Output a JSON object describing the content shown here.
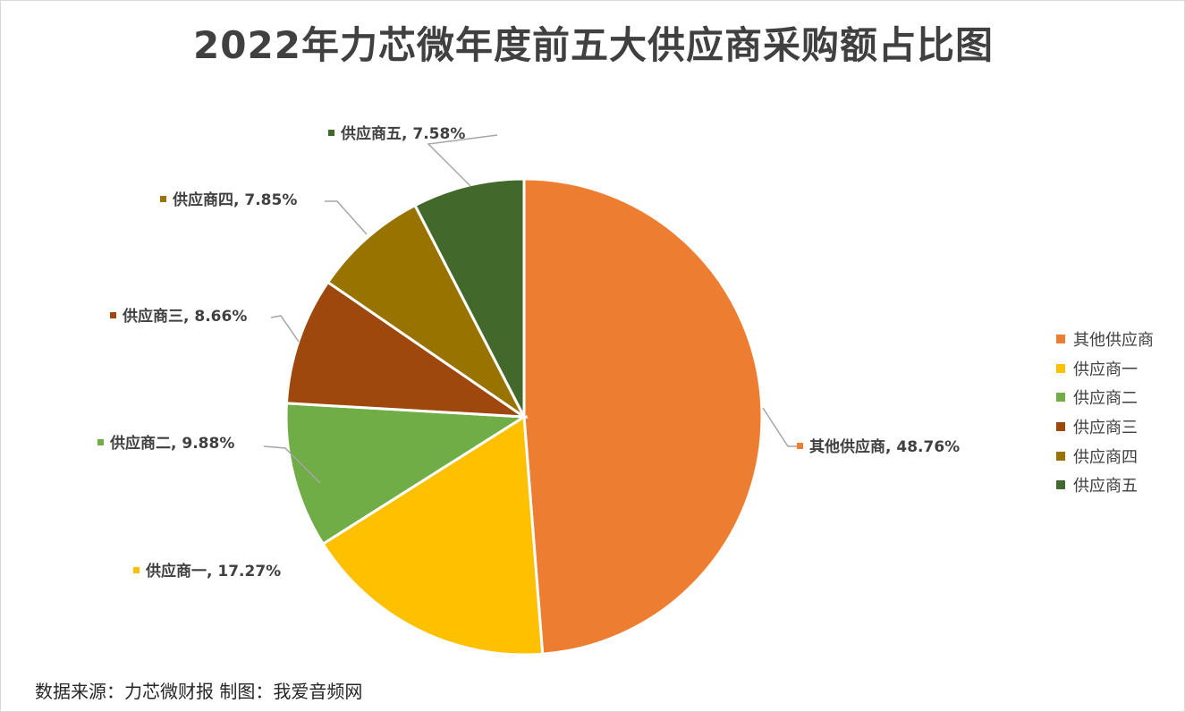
{
  "chart_data": {
    "type": "pie",
    "title": "2022年力芯微年度前五大供应商采购额占比图",
    "slices": [
      {
        "name": "其他供应商",
        "value": 48.76,
        "label": "48.76%",
        "color": "#ED7D31"
      },
      {
        "name": "供应商一",
        "value": 17.27,
        "label": "17.27%",
        "color": "#FFC000"
      },
      {
        "name": "供应商二",
        "value": 9.88,
        "label": "9.88%",
        "color": "#70AD47"
      },
      {
        "name": "供应商三",
        "value": 8.66,
        "label": "8.66%",
        "color": "#9E480E"
      },
      {
        "name": "供应商四",
        "value": 7.85,
        "label": "7.85%",
        "color": "#997300"
      },
      {
        "name": "供应商五",
        "value": 7.58,
        "label": "7.58%",
        "color": "#43682B"
      }
    ],
    "legend_position": "right",
    "source_note": "数据来源：力芯微财报  制图：我爱音频网"
  }
}
